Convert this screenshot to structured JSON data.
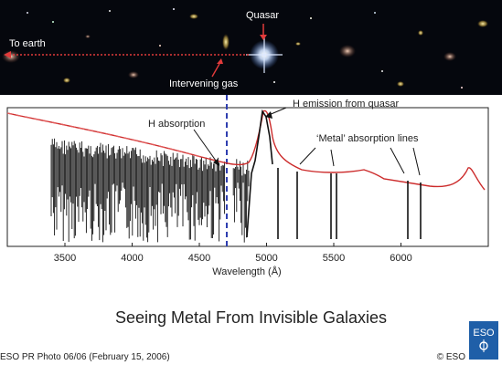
{
  "labels": {
    "quasar": "Quasar",
    "to_earth": "To earth",
    "intervening_gas": "Intervening gas",
    "h_absorption": "H absorption",
    "h_emission": "H emission from quasar",
    "metal_absorption": "‘Metal’ absorption lines"
  },
  "axis": {
    "xlabel": "Wavelength (Å)",
    "ticks": [
      "3500",
      "4000",
      "4500",
      "5000",
      "5500",
      "6000"
    ]
  },
  "caption": "Seeing Metal From Invisible Galaxies",
  "footer": {
    "credit": "ESO PR Photo 06/06 (February 15, 2006)",
    "copyright": "© ESO",
    "logo_text": "ESO"
  },
  "colors": {
    "spectrum": "#111111",
    "continuum": "#cc2b2b",
    "marker": "#2f3fb0",
    "sky": "#05070d",
    "logo": "#1f5fa8"
  }
}
